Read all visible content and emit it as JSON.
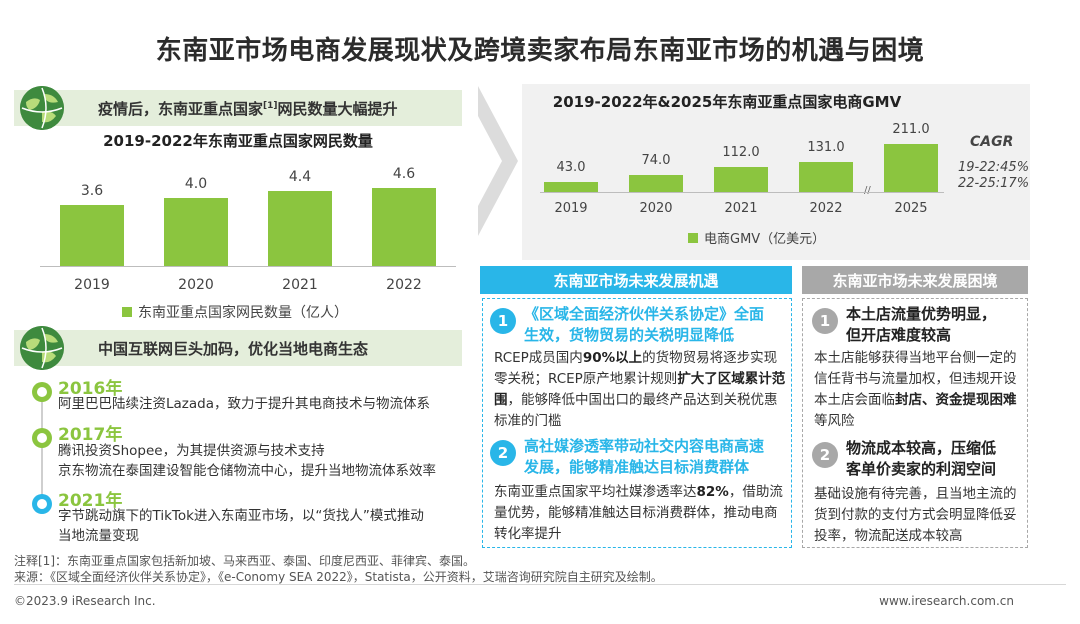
{
  "title": "东南亚市场电商发展现状及跨境卖家布局东南亚市场的机遇与困境",
  "left_top": {
    "heading_pre": "疫情后，东南亚重点国家",
    "heading_sup": "[1]",
    "heading_post": "网民数量大幅提升",
    "chart_title": "2019-2022年东南亚重点国家网民数量",
    "legend": "东南亚重点国家网民数量（亿人）",
    "value_labels": [
      "3.6",
      "4.0",
      "4.4",
      "4.6"
    ]
  },
  "gmv": {
    "chart_title": "2019-2022年&2025年东南亚重点国家电商GMV",
    "legend": "电商GMV（亿美元）",
    "value_labels": [
      "43.0",
      "74.0",
      "112.0",
      "131.0",
      "211.0"
    ],
    "cagr_title": "CAGR",
    "cagr_1": "19-22:45%",
    "cagr_2": "22-25:17%"
  },
  "chart_data": [
    {
      "type": "bar",
      "title": "2019-2022年东南亚重点国家网民数量",
      "categories": [
        "2019",
        "2020",
        "2021",
        "2022"
      ],
      "series": [
        {
          "name": "东南亚重点国家网民数量（亿人）",
          "values": [
            3.6,
            4.0,
            4.4,
            4.6
          ]
        }
      ],
      "ylim": [
        0,
        5
      ],
      "grid": false,
      "legend": "bottom"
    },
    {
      "type": "bar",
      "title": "2019-2022年&2025年东南亚重点国家电商GMV",
      "categories": [
        "2019",
        "2020",
        "2021",
        "2022",
        "2025"
      ],
      "series": [
        {
          "name": "电商GMV（亿美元）",
          "values": [
            43.0,
            74.0,
            112.0,
            131.0,
            211.0
          ]
        }
      ],
      "ylim": [
        0,
        220
      ],
      "grid": false,
      "legend": "bottom"
    }
  ],
  "left_bottom": {
    "heading": "中国互联网巨头加码，优化当地电商生态",
    "events": [
      {
        "year": "2016年",
        "lines": [
          "阿里巴巴陆续注资Lazada，致力于提升其电商技术与物流体系"
        ]
      },
      {
        "year": "2017年",
        "lines": [
          "腾讯投资Shopee，为其提供资源与技术支持",
          "京东物流在泰国建设智能仓储物流中心，提升当地物流体系效率"
        ]
      },
      {
        "year": "2021年",
        "lines": [
          "字节跳动旗下的TikTok进入东南亚市场，以“货找人”模式推动",
          "当地流量变现"
        ]
      }
    ]
  },
  "opportunity": {
    "header": "东南亚市场未来发展机遇",
    "items": [
      {
        "num": "1",
        "title_lines": [
          "《区域全面经济伙伴关系协定》全面",
          "生效，货物贸易的关税明显降低"
        ],
        "body": [
          {
            "t": "RCEP成员国内",
            "b": false
          },
          {
            "t": "90%以上",
            "b": true
          },
          {
            "t": "的货物贸易将逐步实现零关税；RCEP原产地累计规则",
            "b": false
          },
          {
            "t": "扩大了区域累计范围",
            "b": true
          },
          {
            "t": "，能够降低中国出口的最终产品达到关税优惠标准的门槛",
            "b": false
          }
        ]
      },
      {
        "num": "2",
        "title_lines": [
          "高社媒渗透率带动社交内容电商高速",
          "发展，能够精准触达目标消费群体"
        ],
        "body": [
          {
            "t": "东南亚重点国家平均社媒渗透率达",
            "b": false
          },
          {
            "t": "82%",
            "b": true
          },
          {
            "t": "，借助流量优势，能够精准触达目标消费群体，推动电商转化率提升",
            "b": false
          }
        ]
      }
    ]
  },
  "difficulty": {
    "header": "东南亚市场未来发展困境",
    "items": [
      {
        "num": "1",
        "title_lines": [
          "本土店流量优势明显，",
          "但开店难度较高"
        ],
        "body": [
          {
            "t": "本土店能够获得当地平台侧一定的信任背书与流量加权，但违规开设本土店会面临",
            "b": false
          },
          {
            "t": "封店、资金提现困难",
            "b": true
          },
          {
            "t": "等风险",
            "b": false
          }
        ]
      },
      {
        "num": "2",
        "title_lines": [
          "物流成本较高，压缩低",
          "客单价卖家的利润空间"
        ],
        "body": [
          {
            "t": "基础设施有待完善，且当地主流的货到付款的支付方式会明显降低妥投率，物流配送成本较高",
            "b": false
          }
        ]
      }
    ]
  },
  "notes": {
    "note1": "注释[1]：东南亚重点国家包括新加坡、马来西亚、泰国、印度尼西亚、菲律宾、泰国。",
    "note2": "来源：《区域全面经济伙伴关系协定》，《e-Conomy SEA 2022》，Statista，公开资料，艾瑞咨询研究院自主研究及绘制。"
  },
  "footer": {
    "left": "©2023.9 iResearch Inc.",
    "right": "www.iresearch.com.cn"
  },
  "colors": {
    "bar": "#8bc53f",
    "accent_blue": "#29b6e8",
    "gray": "#9e9e9e",
    "section_bg": "#e4eedb"
  }
}
